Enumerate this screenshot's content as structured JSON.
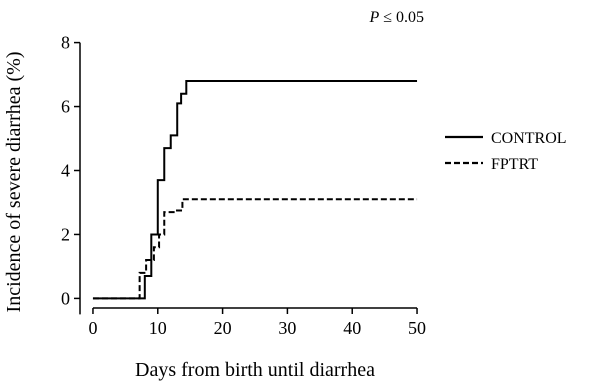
{
  "chart_data": {
    "type": "line",
    "step": true,
    "xlabel": "Days from birth until diarrhea",
    "ylabel": "Incidence of severe diarrhea (%)",
    "xlim": [
      -2,
      52
    ],
    "ylim": [
      -0.3,
      8.3
    ],
    "xticks": [
      0,
      10,
      20,
      30,
      40,
      50
    ],
    "yticks": [
      0,
      2,
      4,
      6,
      8
    ],
    "grid": false,
    "legend_position": "right",
    "annotation": "P ≤ 0.05",
    "annotation_italic": "P",
    "annotation_rest": " ≤ 0.05",
    "series": [
      {
        "name": "CONTROL",
        "style": "solid",
        "points": [
          [
            0,
            0
          ],
          [
            8,
            0
          ],
          [
            8,
            0.7
          ],
          [
            9,
            0.7
          ],
          [
            9,
            2.0
          ],
          [
            10,
            2.0
          ],
          [
            10,
            3.7
          ],
          [
            11,
            3.7
          ],
          [
            11,
            4.7
          ],
          [
            12,
            4.7
          ],
          [
            12,
            5.1
          ],
          [
            13,
            5.1
          ],
          [
            13,
            6.1
          ],
          [
            13.6,
            6.1
          ],
          [
            13.6,
            6.4
          ],
          [
            14.4,
            6.4
          ],
          [
            14.4,
            6.8
          ],
          [
            50,
            6.8
          ]
        ]
      },
      {
        "name": "FPTRT",
        "style": "dashed",
        "points": [
          [
            0,
            0
          ],
          [
            7.2,
            0
          ],
          [
            7.2,
            0.8
          ],
          [
            8.2,
            0.8
          ],
          [
            8.2,
            1.2
          ],
          [
            9.4,
            1.2
          ],
          [
            9.4,
            1.6
          ],
          [
            10.2,
            1.6
          ],
          [
            10.2,
            2.0
          ],
          [
            11,
            2.0
          ],
          [
            11,
            2.7
          ],
          [
            12.6,
            2.7
          ],
          [
            12.6,
            2.75
          ],
          [
            13.8,
            2.75
          ],
          [
            13.8,
            3.1
          ],
          [
            50,
            3.1
          ]
        ]
      }
    ]
  }
}
